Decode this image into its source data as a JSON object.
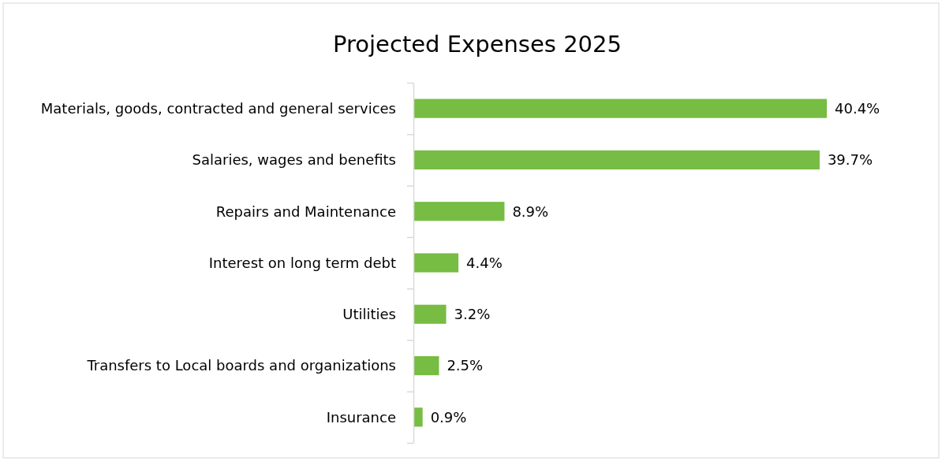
{
  "chart_data": {
    "type": "bar",
    "orientation": "horizontal",
    "title": "Projected Expenses 2025",
    "categories": [
      "Materials, goods, contracted and general services",
      "Salaries, wages and benefits",
      "Repairs and Maintenance",
      "Interest on long term debt",
      "Utilities",
      "Transfers to Local boards and organizations",
      "Insurance"
    ],
    "values": [
      40.4,
      39.7,
      8.9,
      4.4,
      3.2,
      2.5,
      0.9
    ],
    "value_labels": [
      "40.4%",
      "39.7%",
      "8.9%",
      "4.4%",
      "3.2%",
      "2.5%",
      "0.9%"
    ],
    "color": "#77bc43"
  }
}
